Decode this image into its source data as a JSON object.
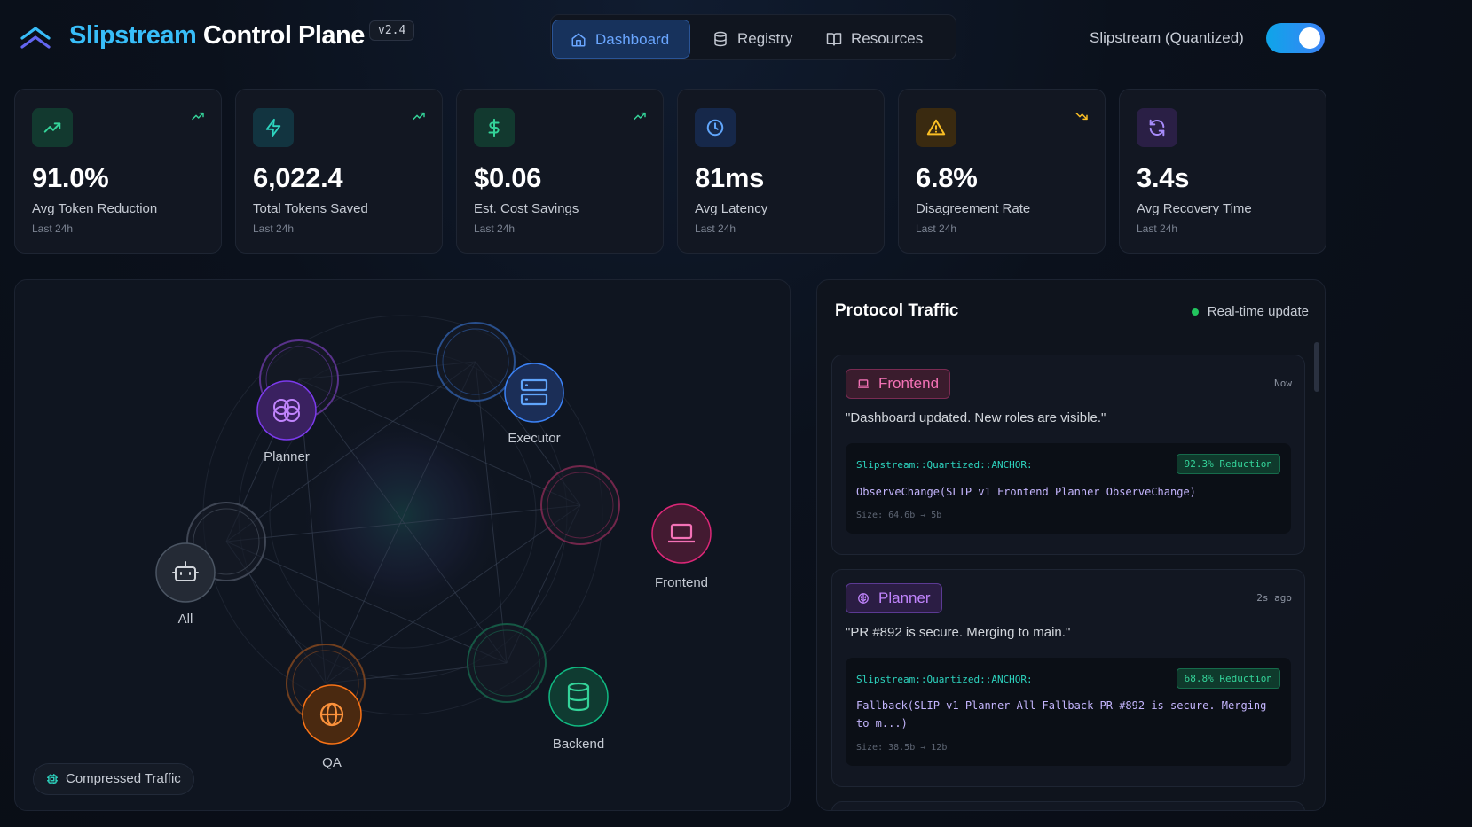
{
  "app": {
    "brand_accent": "Slipstream",
    "brand_rest": "Control Plane",
    "version": "v2.4"
  },
  "nav": {
    "items": [
      {
        "label": "Dashboard",
        "icon": "home-icon",
        "active": true
      },
      {
        "label": "Registry",
        "icon": "database-icon",
        "active": false
      },
      {
        "label": "Resources",
        "icon": "book-icon",
        "active": false
      }
    ]
  },
  "mode_toggle": {
    "label": "Slipstream (Quantized)",
    "on": true
  },
  "stats": [
    {
      "value": "91.0%",
      "label": "Avg Token Reduction",
      "sub": "Last 24h",
      "icon": "trending-up-icon",
      "color": "#34d399",
      "trend": "up"
    },
    {
      "value": "6,022.4",
      "label": "Total Tokens Saved",
      "sub": "Last 24h",
      "icon": "zap-icon",
      "color": "#2dd4bf",
      "trend": "up"
    },
    {
      "value": "$0.06",
      "label": "Est. Cost Savings",
      "sub": "Last 24h",
      "icon": "dollar-icon",
      "color": "#34d399",
      "trend": "up"
    },
    {
      "value": "81ms",
      "label": "Avg Latency",
      "sub": "Last 24h",
      "icon": "clock-icon",
      "color": "#60a5fa",
      "trend": "none"
    },
    {
      "value": "6.8%",
      "label": "Disagreement Rate",
      "sub": "Last 24h",
      "icon": "warning-icon",
      "color": "#fbbf24",
      "trend": "down"
    },
    {
      "value": "3.4s",
      "label": "Avg Recovery Time",
      "sub": "Last 24h",
      "icon": "refresh-icon",
      "color": "#a78bfa",
      "trend": "none"
    }
  ],
  "network": {
    "nodes": [
      {
        "label": "Planner",
        "icon": "brain-icon",
        "color": "#a855f7"
      },
      {
        "label": "Executor",
        "icon": "server-icon",
        "color": "#3b82f6"
      },
      {
        "label": "Frontend",
        "icon": "laptop-icon",
        "color": "#ec4899"
      },
      {
        "label": "Backend",
        "icon": "database-icon",
        "color": "#10b981"
      },
      {
        "label": "QA",
        "icon": "globe-icon",
        "color": "#f97316"
      },
      {
        "label": "All",
        "icon": "bot-icon",
        "color": "#9ca3af"
      }
    ],
    "legend": "Compressed Traffic"
  },
  "traffic": {
    "title": "Protocol Traffic",
    "status": "Real-time update",
    "messages": [
      {
        "role": "Frontend",
        "time": "Now",
        "quote": "\"Dashboard updated. New roles are visible.\"",
        "anchor": "Slipstream::Quantized::ANCHOR:",
        "reduction": "92.3% Reduction",
        "call_lines": [
          "ObserveChange(SLIP v1 Frontend Planner ObserveChange)"
        ],
        "size": "Size: 64.6b → 5b"
      },
      {
        "role": "Planner",
        "time": "2s ago",
        "quote": "\"PR #892 is secure. Merging to main.\"",
        "anchor": "Slipstream::Quantized::ANCHOR:",
        "reduction": "68.8% Reduction",
        "call_lines": [
          "Fallback(SLIP v1 Planner All Fallback PR #892 is secure. Merging",
          "to m...)"
        ],
        "size": "Size: 38.5b → 12b"
      }
    ]
  }
}
